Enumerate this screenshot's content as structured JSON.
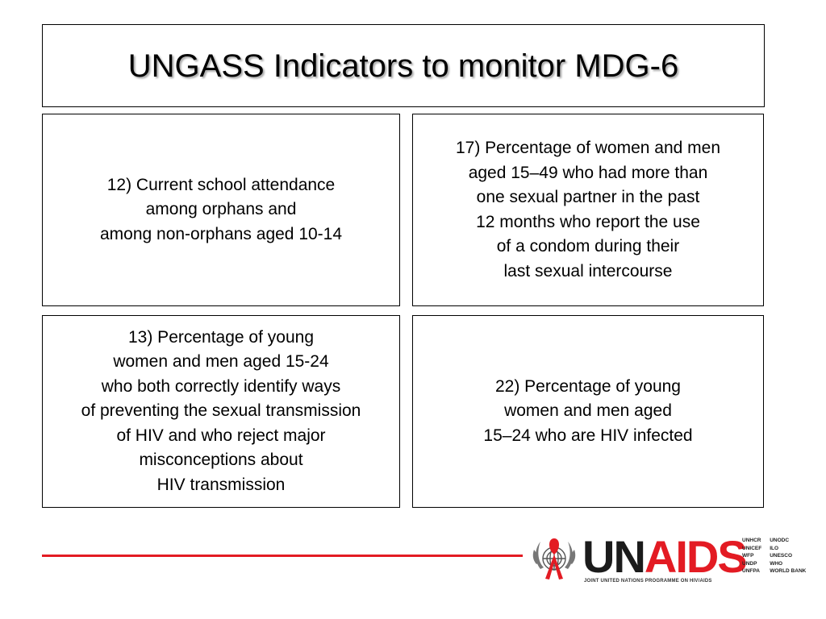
{
  "title": "UNGASS Indicators to monitor MDG-6",
  "indicators": {
    "i12": [
      "12) Current school attendance",
      "among orphans and",
      "among non-orphans aged 10-14"
    ],
    "i17": [
      "17) Percentage of women and men",
      "aged 15–49 who had more than",
      "one sexual partner in the past",
      "12 months who report the use",
      "of a condom during their",
      "last sexual intercourse"
    ],
    "i13": [
      "13) Percentage of young",
      "women and men aged 15-24",
      "who both correctly identify ways",
      "of preventing the sexual transmission",
      "of HIV and who reject major",
      "misconceptions about",
      "HIV transmission"
    ],
    "i22": [
      "22) Percentage of young",
      "women and men aged",
      "15–24  who are HIV infected"
    ]
  },
  "footer": {
    "logo_un": "UN",
    "logo_aids": "AIDS",
    "tagline": "JOINT UNITED NATIONS PROGRAMME ON HIV/AIDS",
    "cosponsors_col1": [
      "UNHCR",
      "UNICEF",
      "WFP",
      "UNDP",
      "UNFPA"
    ],
    "cosponsors_col2": [
      "UNODC",
      "ILO",
      "UNESCO",
      "WHO",
      "WORLD BANK"
    ],
    "accent_color": "#e31b23"
  }
}
